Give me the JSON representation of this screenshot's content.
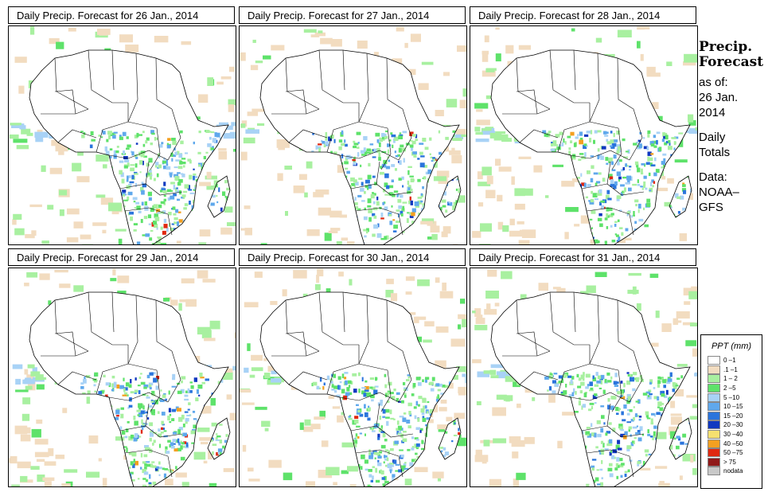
{
  "panels": [
    {
      "title": "Daily Precip. Forecast for  26 Jan., 2014"
    },
    {
      "title": "Daily Precip. Forecast for  27 Jan., 2014"
    },
    {
      "title": "Daily Precip. Forecast for  28 Jan., 2014"
    },
    {
      "title": "Daily Precip. Forecast for  29 Jan., 2014"
    },
    {
      "title": "Daily Precip. Forecast for  30 Jan., 2014"
    },
    {
      "title": "Daily Precip. Forecast for  31 Jan., 2014"
    }
  ],
  "side": {
    "heading_line1": "Precip.",
    "heading_line2": "Forecast",
    "asof_line1": "as of:",
    "asof_line2": "26 Jan.",
    "asof_line3": "2014",
    "totals_line1": "Daily",
    "totals_line2": "Totals",
    "data_line1": "Data:",
    "data_line2": "NOAA–",
    "data_line3": "GFS"
  },
  "legend": {
    "title": "PPT (mm)",
    "items": [
      {
        "label": "0 –1",
        "color": "#ffffff"
      },
      {
        "label": ".1 –1",
        "color": "#f2dcc0"
      },
      {
        "label": "1 – 2",
        "color": "#a8f0a0"
      },
      {
        "label": "2 –5",
        "color": "#5ee26a"
      },
      {
        "label": "5 –10",
        "color": "#a8d2f6"
      },
      {
        "label": "10 –15",
        "color": "#5fa8ec"
      },
      {
        "label": "15 –20",
        "color": "#2a74dc"
      },
      {
        "label": "20 –30",
        "color": "#1038c0"
      },
      {
        "label": "30 –40",
        "color": "#f6e070"
      },
      {
        "label": "40 –50",
        "color": "#f4a020"
      },
      {
        "label": "50 –75",
        "color": "#e02810"
      },
      {
        "label": "> 75",
        "color": "#901818"
      },
      {
        "label": "nodata",
        "color": "#c8c8c8"
      }
    ]
  }
}
